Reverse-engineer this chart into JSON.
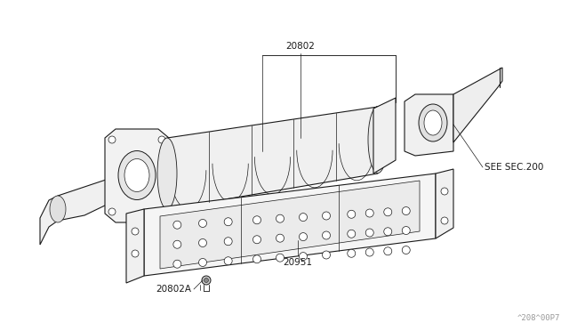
{
  "bg_color": "#ffffff",
  "line_color": "#1a1a1a",
  "label_color": "#1a1a1a",
  "label_fontsize": 7.5,
  "watermark_text": "^208^00P7",
  "watermark_fontsize": 6.5,
  "fig_width": 6.4,
  "fig_height": 3.72,
  "dpi": 100,
  "part_label_20802": "20802",
  "part_label_20951": "20951",
  "part_label_20802A": "20802A",
  "part_label_seesec": "SEE SEC.200",
  "lw_main": 0.8,
  "lw_thin": 0.5,
  "lw_detail": 0.4
}
